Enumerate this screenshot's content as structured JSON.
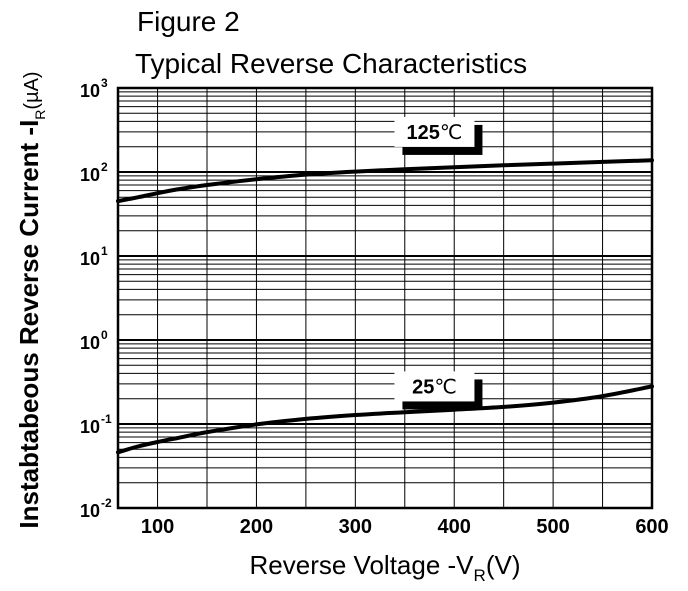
{
  "chart_data": {
    "type": "line",
    "title_line1": "Figure 2",
    "title_line2": "Typical Reverse Characteristics",
    "xlabel": "Reverse Voltage -V",
    "xlabel_sub": "R",
    "xlabel_suffix": "(V)",
    "ylabel": "Instabtabeous Reverse Current -I",
    "ylabel_sub": "R",
    "ylabel_suffix": "(µA)",
    "xlim": [
      60,
      600
    ],
    "ylim": [
      0.01,
      1000
    ],
    "yscale": "log",
    "grid": true,
    "x_ticks": [
      {
        "value": 100,
        "label": "100"
      },
      {
        "value": 200,
        "label": "200"
      },
      {
        "value": 300,
        "label": "300"
      },
      {
        "value": 400,
        "label": "400"
      },
      {
        "value": 500,
        "label": "500"
      },
      {
        "value": 600,
        "label": "600"
      }
    ],
    "y_ticks": [
      {
        "value": 1000,
        "base": "10",
        "exp": "3"
      },
      {
        "value": 100,
        "base": "10",
        "exp": "2"
      },
      {
        "value": 10,
        "base": "10",
        "exp": "1"
      },
      {
        "value": 1,
        "base": "10",
        "exp": "0"
      },
      {
        "value": 0.1,
        "base": "10",
        "exp": "-1"
      },
      {
        "value": 0.01,
        "base": "10",
        "exp": "-2"
      }
    ],
    "series": [
      {
        "name": "125℃",
        "label_number": "125",
        "label_unit": "℃",
        "label_x": 380,
        "label_y": 300,
        "points": [
          [
            60,
            45
          ],
          [
            80,
            50
          ],
          [
            100,
            56
          ],
          [
            120,
            62
          ],
          [
            150,
            70
          ],
          [
            200,
            82
          ],
          [
            250,
            93
          ],
          [
            300,
            101
          ],
          [
            350,
            108
          ],
          [
            400,
            114
          ],
          [
            450,
            120
          ],
          [
            500,
            126
          ],
          [
            550,
            132
          ],
          [
            600,
            138
          ]
        ]
      },
      {
        "name": "25℃",
        "label_number": "25",
        "label_unit": "℃",
        "label_x": 380,
        "label_y": 0.28,
        "points": [
          [
            60,
            0.046
          ],
          [
            80,
            0.054
          ],
          [
            100,
            0.061
          ],
          [
            120,
            0.068
          ],
          [
            150,
            0.08
          ],
          [
            200,
            0.099
          ],
          [
            250,
            0.115
          ],
          [
            300,
            0.128
          ],
          [
            350,
            0.138
          ],
          [
            400,
            0.148
          ],
          [
            450,
            0.16
          ],
          [
            500,
            0.18
          ],
          [
            550,
            0.215
          ],
          [
            600,
            0.28
          ]
        ]
      }
    ]
  },
  "colors": {
    "background": "#ffffff",
    "grid": "#000000",
    "curve": "#000000",
    "label_shadow": "#000000"
  }
}
